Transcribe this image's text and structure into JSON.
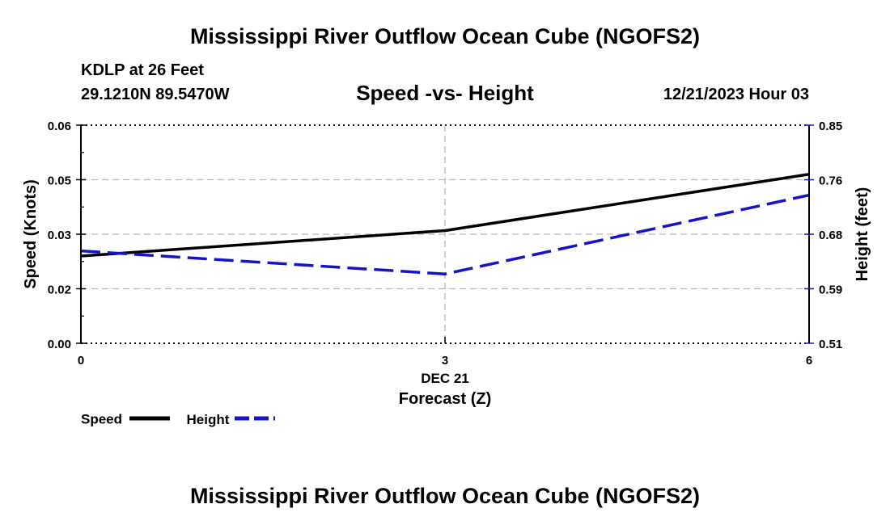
{
  "header": {
    "title": "Mississippi River Outflow Ocean Cube (NGOFS2)",
    "station": "KDLP at 26 Feet",
    "coords": "29.1210N  89.5470W",
    "subtitle": "Speed -vs- Height",
    "valid_time": "12/21/2023 Hour 03"
  },
  "footer": {
    "title": "Mississippi River Outflow Ocean Cube (NGOFS2)"
  },
  "legend": {
    "speed_label": "Speed",
    "height_label": "Height"
  },
  "colors": {
    "speed": "#000000",
    "height": "#1515c8",
    "grid": "#b8b8b8"
  },
  "chart_data": {
    "type": "line",
    "title": "Speed -vs- Height",
    "xlabel": "Forecast (Z)",
    "x_date_label": "DEC 21",
    "ylabel": "Speed (Knots)",
    "y2label": "Height (feet)",
    "x": [
      0,
      3,
      6
    ],
    "xlim": [
      0,
      6
    ],
    "x_ticks": [
      0,
      3,
      6
    ],
    "ylim": [
      0,
      0.06
    ],
    "y_ticks": [
      0.0,
      0.015,
      0.03,
      0.045,
      0.06
    ],
    "y_tick_labels": [
      "0.00",
      "0.02",
      "0.03",
      "0.05",
      "0.06"
    ],
    "y2lim": [
      0.51,
      0.85
    ],
    "y2_tick_labels": [
      "0.51",
      "0.59",
      "0.68",
      "0.76",
      "0.85"
    ],
    "series": [
      {
        "name": "Speed",
        "axis": "left",
        "style": "solid",
        "values": [
          0.024,
          0.031,
          0.0465
        ]
      },
      {
        "name": "Height",
        "axis": "right",
        "style": "dashed",
        "values": [
          0.654,
          0.618,
          0.741
        ]
      }
    ]
  }
}
